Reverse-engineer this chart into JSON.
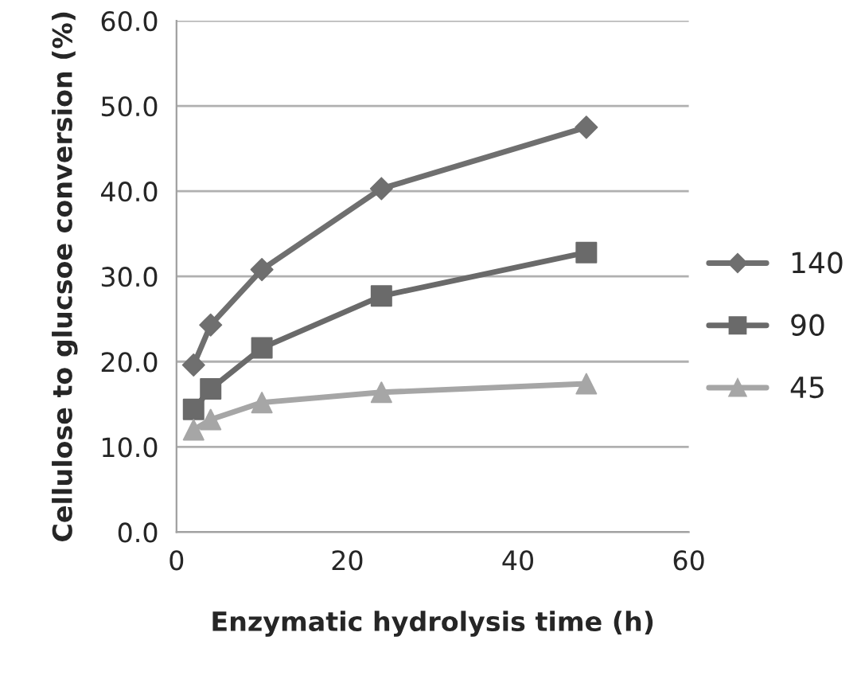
{
  "chart_data": {
    "type": "line",
    "xlabel": "Enzymatic hydrolysis time (h)",
    "ylabel": "Cellulose to glucsoe conversion (%)",
    "x": [
      2,
      4,
      10,
      24,
      48
    ],
    "series": [
      {
        "name": "140",
        "color": "#6f6f6f",
        "marker": "diamond",
        "values": [
          19.6,
          24.3,
          30.8,
          40.3,
          47.5
        ]
      },
      {
        "name": "90",
        "color": "#6a6a6a",
        "marker": "square",
        "values": [
          14.4,
          16.8,
          21.6,
          27.7,
          32.8
        ]
      },
      {
        "name": "45",
        "color": "#a6a6a6",
        "marker": "triangle",
        "values": [
          12.0,
          13.2,
          15.2,
          16.4,
          17.4
        ]
      }
    ],
    "xlim": [
      0,
      60
    ],
    "xticks": [
      0,
      20,
      40,
      60
    ],
    "ylim": [
      0,
      60
    ],
    "yticks": [
      {
        "value": 0,
        "label": "0.0"
      },
      {
        "value": 10,
        "label": "10.0"
      },
      {
        "value": 20,
        "label": "20.0"
      },
      {
        "value": 30,
        "label": "30.0"
      },
      {
        "value": 40,
        "label": "40.0"
      },
      {
        "value": 50,
        "label": "50.0"
      },
      {
        "value": 60,
        "label": "60.0"
      }
    ],
    "grid": "y",
    "legend": "right",
    "line_style": "solid"
  }
}
